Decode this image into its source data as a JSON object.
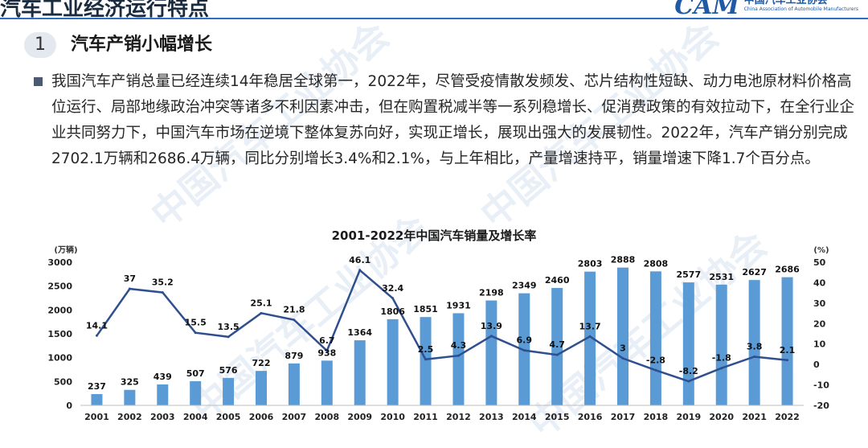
{
  "header": {
    "title": "汽车工业经济运行特点"
  },
  "logo": {
    "mark": "CAM",
    "name_cn": "中国汽车工业协会",
    "name_en": "China Association of Automobile Manufacturers"
  },
  "section": {
    "number": "1",
    "title": "汽车产销小幅增长"
  },
  "paragraph": "我国汽车产销总量已经连续14年稳居全球第一，2022年，尽管受疫情散发频发、芯片结构性短缺、动力电池原材料价格高位运行、局部地缘政治冲突等诸多不利因素冲击，但在购置税减半等一系列稳增长、促消费政策的有效拉动下，在全行业企业共同努力下，中国汽车市场在逆境下整体复苏向好，实现正增长，展现出强大的发展韧性。2022年，汽车产销分别完成2702.1万辆和2686.4万辆，同比分别增长3.4%和2.1%，与上年相比，产量增速持平，销量增速下降1.7个百分点。",
  "watermark": "中国汽车工业协会",
  "chart_data": {
    "type": "bar",
    "title": "2001-2022年中国汽车销量及增长率",
    "y_unit_left": "(万辆)",
    "y_unit_right": "(%)",
    "categories": [
      "2001",
      "2002",
      "2003",
      "2004",
      "2005",
      "2006",
      "2007",
      "2008",
      "2009",
      "2010",
      "2011",
      "2012",
      "2013",
      "2014",
      "2015",
      "2016",
      "2017",
      "2018",
      "2019",
      "2020",
      "2021",
      "2022"
    ],
    "ylim_left": [
      0,
      3000
    ],
    "yticks_left": [
      0,
      500,
      1000,
      1500,
      2000,
      2500,
      3000
    ],
    "ylim_right": [
      -20,
      50
    ],
    "yticks_right": [
      -20,
      -10,
      0,
      10,
      20,
      30,
      40,
      50
    ],
    "series": [
      {
        "type": "bar",
        "axis": "left",
        "color": "#5b9bd5",
        "values": [
          237,
          325,
          439,
          507,
          576,
          722,
          879,
          938,
          1364,
          1806,
          1851,
          1931,
          2198,
          2349,
          2460,
          2803,
          2888,
          2808,
          2577,
          2531,
          2627,
          2686
        ]
      },
      {
        "type": "line",
        "axis": "right",
        "color": "#2f4f8f",
        "values": [
          14.1,
          37,
          35.2,
          15.5,
          13.5,
          25.1,
          21.8,
          6.7,
          46.1,
          32.4,
          2.5,
          4.3,
          13.9,
          6.9,
          4.7,
          13.7,
          3.0,
          -2.8,
          -8.2,
          -1.8,
          3.8,
          2.1
        ]
      }
    ],
    "grid": false,
    "legend": "none"
  }
}
